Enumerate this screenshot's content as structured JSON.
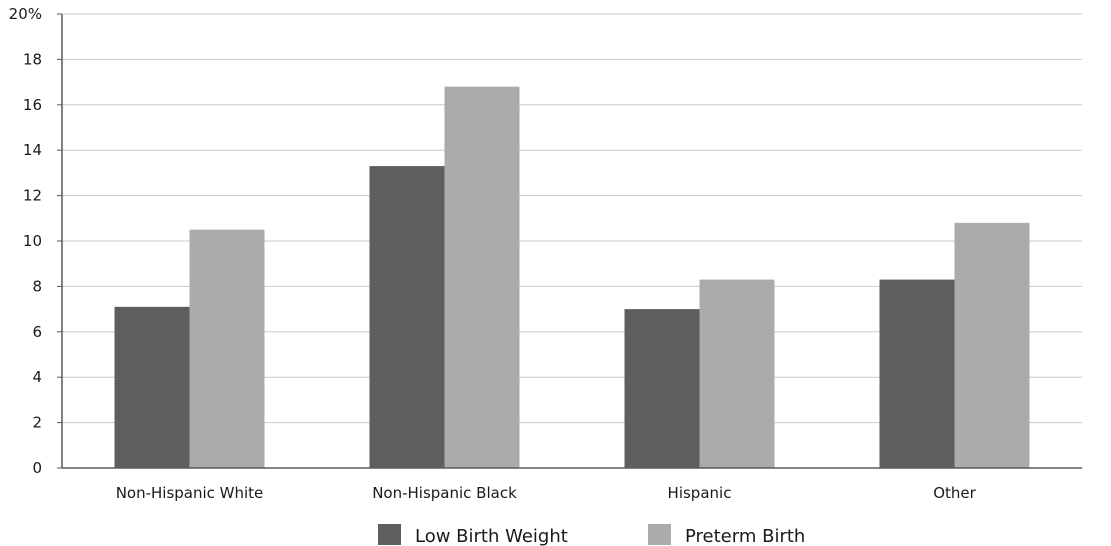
{
  "chart_data": {
    "type": "bar",
    "categories": [
      "Non-Hispanic White",
      "Non-Hispanic Black",
      "Hispanic",
      "Other"
    ],
    "series": [
      {
        "name": "Low Birth Weight",
        "values": [
          7.1,
          13.3,
          7.0,
          8.3
        ],
        "color": "#5e5e5e"
      },
      {
        "name": "Preterm Birth",
        "values": [
          10.5,
          16.8,
          8.3,
          10.8
        ],
        "color": "#ababab"
      }
    ],
    "ylim": [
      0,
      20
    ],
    "yticks": [
      0,
      2,
      4,
      6,
      8,
      10,
      12,
      14,
      16,
      18,
      20
    ],
    "ytick_labels": [
      "0",
      "2",
      "4",
      "6",
      "8",
      "10",
      "12",
      "14",
      "16",
      "18",
      "20%"
    ],
    "grid": true,
    "legend_position": "bottom",
    "title": "",
    "xlabel": "",
    "ylabel": ""
  },
  "colors": {
    "grid": "#c8c8c8",
    "axis": "#5a5a5a"
  }
}
